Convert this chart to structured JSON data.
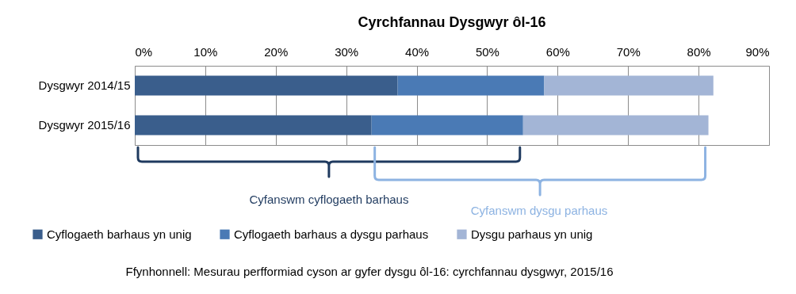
{
  "chart_data": {
    "type": "bar",
    "orientation": "horizontal",
    "stacked": true,
    "title": "Cyrchfannau Dysgwyr ôl-16",
    "categories": [
      "Dysgwyr 2014/15",
      "Dysgwyr 2015/16"
    ],
    "series": [
      {
        "name": "Cyflogaeth barhaus yn unig",
        "color": "#3a5e8c",
        "values": [
          37.3,
          33.6
        ]
      },
      {
        "name": "Cyflogaeth barhaus a dysgu parhaus",
        "color": "#4a7ab5",
        "values": [
          20.8,
          21.5
        ]
      },
      {
        "name": "Dysgu parhaus yn unig",
        "color": "#a3b5d6",
        "values": [
          24.0,
          26.3
        ]
      }
    ],
    "xlim": [
      0,
      90
    ],
    "xticks": [
      {
        "value": 0,
        "label": "0%"
      },
      {
        "value": 10,
        "label": "10%"
      },
      {
        "value": 20,
        "label": "20%"
      },
      {
        "value": 30,
        "label": "30%"
      },
      {
        "value": 40,
        "label": "40%"
      },
      {
        "value": 50,
        "label": "50%"
      },
      {
        "value": 60,
        "label": "60%"
      },
      {
        "value": 70,
        "label": "70%"
      },
      {
        "value": 80,
        "label": "80%"
      },
      {
        "value": 90,
        "label": "90%"
      }
    ],
    "grid": "x",
    "legend": "bottom",
    "annotations": [
      "Cyfanswm cyflogaeth barhaus",
      "Cyfanswm dysgu parhaus",
      "Ffynhonnell: Mesurau perfformiad cyson ar gyfer dysgu ôl-16: cyrchfannau dysgwyr, 2015/16"
    ]
  }
}
